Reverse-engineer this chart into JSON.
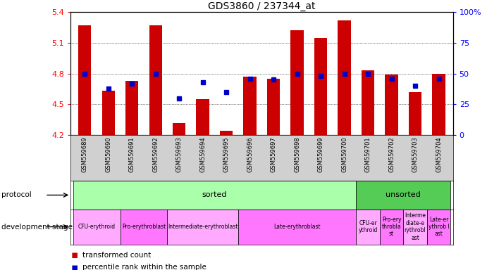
{
  "title": "GDS3860 / 237344_at",
  "samples": [
    "GSM559689",
    "GSM559690",
    "GSM559691",
    "GSM559692",
    "GSM559693",
    "GSM559694",
    "GSM559695",
    "GSM559696",
    "GSM559697",
    "GSM559698",
    "GSM559699",
    "GSM559700",
    "GSM559701",
    "GSM559702",
    "GSM559703",
    "GSM559704"
  ],
  "transformed_count": [
    5.27,
    4.63,
    4.73,
    5.27,
    4.32,
    4.55,
    4.24,
    4.77,
    4.75,
    5.22,
    5.15,
    5.32,
    4.83,
    4.79,
    4.62,
    4.8
  ],
  "percentile_rank": [
    50,
    38,
    42,
    50,
    30,
    43,
    35,
    46,
    45,
    50,
    48,
    50,
    50,
    46,
    40,
    46
  ],
  "ymin": 4.2,
  "ymax": 5.4,
  "yticks_left": [
    4.2,
    4.5,
    4.8,
    5.1,
    5.4
  ],
  "yticks_right": [
    0,
    25,
    50,
    75,
    100
  ],
  "bar_color": "#cc0000",
  "dot_color": "#0000cc",
  "bg_color": "#ffffff",
  "protocol_row": [
    {
      "label": "sorted",
      "start": 0,
      "end": 11,
      "color": "#aaffaa"
    },
    {
      "label": "unsorted",
      "start": 12,
      "end": 15,
      "color": "#55cc55"
    }
  ],
  "dev_stage_row": [
    {
      "label": "CFU-erythroid",
      "start": 0,
      "end": 1,
      "color": "#ffaaff"
    },
    {
      "label": "Pro-erythroblast",
      "start": 2,
      "end": 3,
      "color": "#ff77ff"
    },
    {
      "label": "Intermediate-erythroblast",
      "start": 4,
      "end": 6,
      "color": "#ffaaff"
    },
    {
      "label": "Late-erythroblast",
      "start": 7,
      "end": 11,
      "color": "#ff77ff"
    },
    {
      "label": "CFU-er\nythroid",
      "start": 12,
      "end": 12,
      "color": "#ffaaff"
    },
    {
      "label": "Pro-ery\nthrobla\nst",
      "start": 13,
      "end": 13,
      "color": "#ff77ff"
    },
    {
      "label": "Interme\ndiate-e\nrythrobl\nast",
      "start": 14,
      "end": 14,
      "color": "#ffaaff"
    },
    {
      "label": "Late-er\nythrob l\nast",
      "start": 15,
      "end": 15,
      "color": "#ff77ff"
    }
  ],
  "legend_items": [
    {
      "color": "#cc0000",
      "label": "transformed count"
    },
    {
      "color": "#0000cc",
      "label": "percentile rank within the sample"
    }
  ]
}
